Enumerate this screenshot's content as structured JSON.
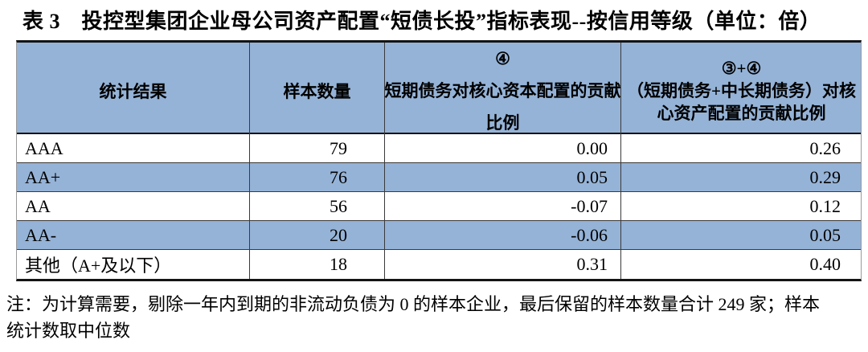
{
  "page": {
    "title": "表 3　投控型集团企业母公司资产配置“短债长投”指标表现--按信用等级（单位：倍）"
  },
  "table": {
    "header": {
      "col1": "统计结果",
      "col2": "样本数量",
      "col3_line1": "④",
      "col3_line2": "短期债务对核心资本配置的贡献",
      "col3_line3": "比例",
      "col4_line1": "③+④",
      "col4_line2": "（短期债务+中长期债务）对核",
      "col4_line3": "心资产配置的贡献比例"
    },
    "rows": [
      {
        "rating": "AAA",
        "sample": "79",
        "v4": "0.00",
        "v34": "0.26"
      },
      {
        "rating": "AA+",
        "sample": "76",
        "v4": "0.05",
        "v34": "0.29"
      },
      {
        "rating": "AA",
        "sample": "56",
        "v4": "-0.07",
        "v34": "0.12"
      },
      {
        "rating": "AA-",
        "sample": "20",
        "v4": "-0.06",
        "v34": "0.05"
      },
      {
        "rating": "其他（A+及以下）",
        "sample": "18",
        "v4": "0.31",
        "v34": "0.40"
      }
    ]
  },
  "note": {
    "line1": "注：为计算需要，剔除一年内到期的非流动负债为 0 的样本企业，最后保留的样本数量合计 249 家；样本",
    "line2": "统计数取中位数"
  },
  "colors": {
    "header_bg": "#95B3D7",
    "stripe_bg": "#95B3D7",
    "grid_line": "#3a3a3a",
    "heavy_line": "#141414"
  }
}
